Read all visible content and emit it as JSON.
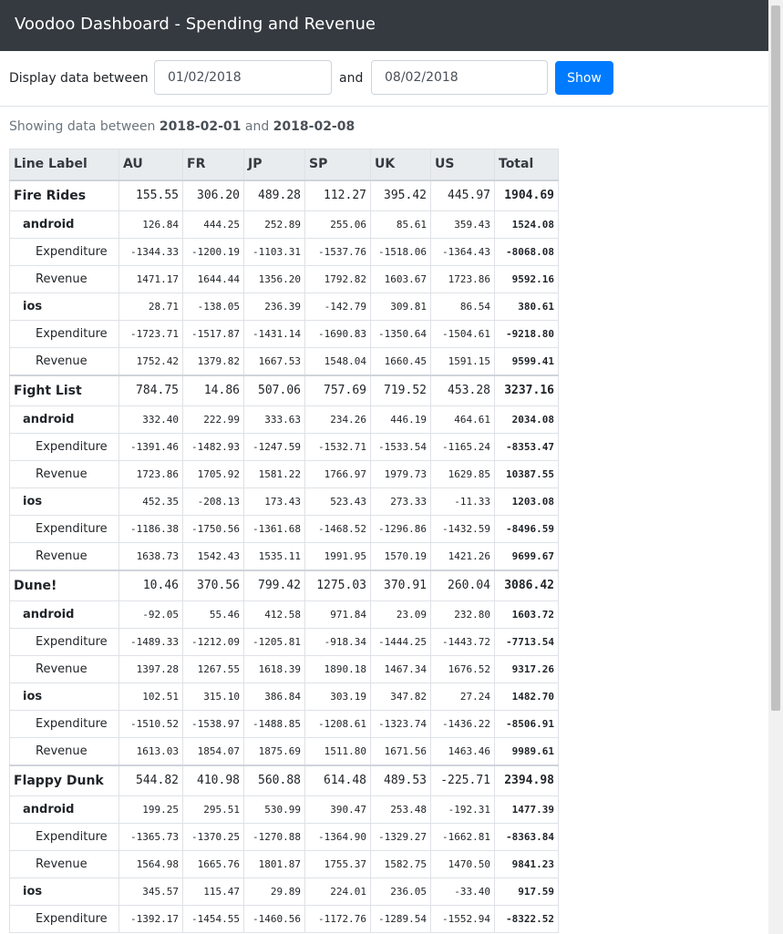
{
  "header": {
    "title": "Voodoo Dashboard - Spending and Revenue"
  },
  "filter": {
    "label_between": "Display data between",
    "from_value": "01/02/2018",
    "label_and": "and",
    "to_value": "08/02/2018",
    "show_label": "Show"
  },
  "summary": {
    "prefix": "Showing data between",
    "start": "2018-02-01",
    "conj": "and",
    "end": "2018-02-08"
  },
  "table": {
    "columns": [
      "Line Label",
      "AU",
      "FR",
      "JP",
      "SP",
      "UK",
      "US",
      "Total"
    ],
    "rows": [
      {
        "type": "game",
        "label": "Fire Rides",
        "values": [
          "155.55",
          "306.20",
          "489.28",
          "112.27",
          "395.42",
          "445.97"
        ],
        "total": "1904.69"
      },
      {
        "type": "platform",
        "label": "android",
        "values": [
          "126.84",
          "444.25",
          "252.89",
          "255.06",
          "85.61",
          "359.43"
        ],
        "total": "1524.08"
      },
      {
        "type": "metric",
        "label": "Expenditure",
        "values": [
          "-1344.33",
          "-1200.19",
          "-1103.31",
          "-1537.76",
          "-1518.06",
          "-1364.43"
        ],
        "total": "-8068.08"
      },
      {
        "type": "metric",
        "label": "Revenue",
        "values": [
          "1471.17",
          "1644.44",
          "1356.20",
          "1792.82",
          "1603.67",
          "1723.86"
        ],
        "total": "9592.16"
      },
      {
        "type": "platform",
        "label": "ios",
        "values": [
          "28.71",
          "-138.05",
          "236.39",
          "-142.79",
          "309.81",
          "86.54"
        ],
        "total": "380.61"
      },
      {
        "type": "metric",
        "label": "Expenditure",
        "values": [
          "-1723.71",
          "-1517.87",
          "-1431.14",
          "-1690.83",
          "-1350.64",
          "-1504.61"
        ],
        "total": "-9218.80"
      },
      {
        "type": "metric",
        "label": "Revenue",
        "values": [
          "1752.42",
          "1379.82",
          "1667.53",
          "1548.04",
          "1660.45",
          "1591.15"
        ],
        "total": "9599.41"
      },
      {
        "type": "game",
        "label": "Fight List",
        "values": [
          "784.75",
          "14.86",
          "507.06",
          "757.69",
          "719.52",
          "453.28"
        ],
        "total": "3237.16"
      },
      {
        "type": "platform",
        "label": "android",
        "values": [
          "332.40",
          "222.99",
          "333.63",
          "234.26",
          "446.19",
          "464.61"
        ],
        "total": "2034.08"
      },
      {
        "type": "metric",
        "label": "Expenditure",
        "values": [
          "-1391.46",
          "-1482.93",
          "-1247.59",
          "-1532.71",
          "-1533.54",
          "-1165.24"
        ],
        "total": "-8353.47"
      },
      {
        "type": "metric",
        "label": "Revenue",
        "values": [
          "1723.86",
          "1705.92",
          "1581.22",
          "1766.97",
          "1979.73",
          "1629.85"
        ],
        "total": "10387.55"
      },
      {
        "type": "platform",
        "label": "ios",
        "values": [
          "452.35",
          "-208.13",
          "173.43",
          "523.43",
          "273.33",
          "-11.33"
        ],
        "total": "1203.08"
      },
      {
        "type": "metric",
        "label": "Expenditure",
        "values": [
          "-1186.38",
          "-1750.56",
          "-1361.68",
          "-1468.52",
          "-1296.86",
          "-1432.59"
        ],
        "total": "-8496.59"
      },
      {
        "type": "metric",
        "label": "Revenue",
        "values": [
          "1638.73",
          "1542.43",
          "1535.11",
          "1991.95",
          "1570.19",
          "1421.26"
        ],
        "total": "9699.67"
      },
      {
        "type": "game",
        "label": "Dune!",
        "values": [
          "10.46",
          "370.56",
          "799.42",
          "1275.03",
          "370.91",
          "260.04"
        ],
        "total": "3086.42"
      },
      {
        "type": "platform",
        "label": "android",
        "values": [
          "-92.05",
          "55.46",
          "412.58",
          "971.84",
          "23.09",
          "232.80"
        ],
        "total": "1603.72"
      },
      {
        "type": "metric",
        "label": "Expenditure",
        "values": [
          "-1489.33",
          "-1212.09",
          "-1205.81",
          "-918.34",
          "-1444.25",
          "-1443.72"
        ],
        "total": "-7713.54"
      },
      {
        "type": "metric",
        "label": "Revenue",
        "values": [
          "1397.28",
          "1267.55",
          "1618.39",
          "1890.18",
          "1467.34",
          "1676.52"
        ],
        "total": "9317.26"
      },
      {
        "type": "platform",
        "label": "ios",
        "values": [
          "102.51",
          "315.10",
          "386.84",
          "303.19",
          "347.82",
          "27.24"
        ],
        "total": "1482.70"
      },
      {
        "type": "metric",
        "label": "Expenditure",
        "values": [
          "-1510.52",
          "-1538.97",
          "-1488.85",
          "-1208.61",
          "-1323.74",
          "-1436.22"
        ],
        "total": "-8506.91"
      },
      {
        "type": "metric",
        "label": "Revenue",
        "values": [
          "1613.03",
          "1854.07",
          "1875.69",
          "1511.80",
          "1671.56",
          "1463.46"
        ],
        "total": "9989.61"
      },
      {
        "type": "game",
        "label": "Flappy Dunk",
        "values": [
          "544.82",
          "410.98",
          "560.88",
          "614.48",
          "489.53",
          "-225.71"
        ],
        "total": "2394.98"
      },
      {
        "type": "platform",
        "label": "android",
        "values": [
          "199.25",
          "295.51",
          "530.99",
          "390.47",
          "253.48",
          "-192.31"
        ],
        "total": "1477.39"
      },
      {
        "type": "metric",
        "label": "Expenditure",
        "values": [
          "-1365.73",
          "-1370.25",
          "-1270.88",
          "-1364.90",
          "-1329.27",
          "-1662.81"
        ],
        "total": "-8363.84"
      },
      {
        "type": "metric",
        "label": "Revenue",
        "values": [
          "1564.98",
          "1665.76",
          "1801.87",
          "1755.37",
          "1582.75",
          "1470.50"
        ],
        "total": "9841.23"
      },
      {
        "type": "platform",
        "label": "ios",
        "values": [
          "345.57",
          "115.47",
          "29.89",
          "224.01",
          "236.05",
          "-33.40"
        ],
        "total": "917.59"
      },
      {
        "type": "metric",
        "label": "Expenditure",
        "values": [
          "-1392.17",
          "-1454.55",
          "-1460.56",
          "-1172.76",
          "-1289.54",
          "-1552.94"
        ],
        "total": "-8322.52"
      }
    ]
  }
}
